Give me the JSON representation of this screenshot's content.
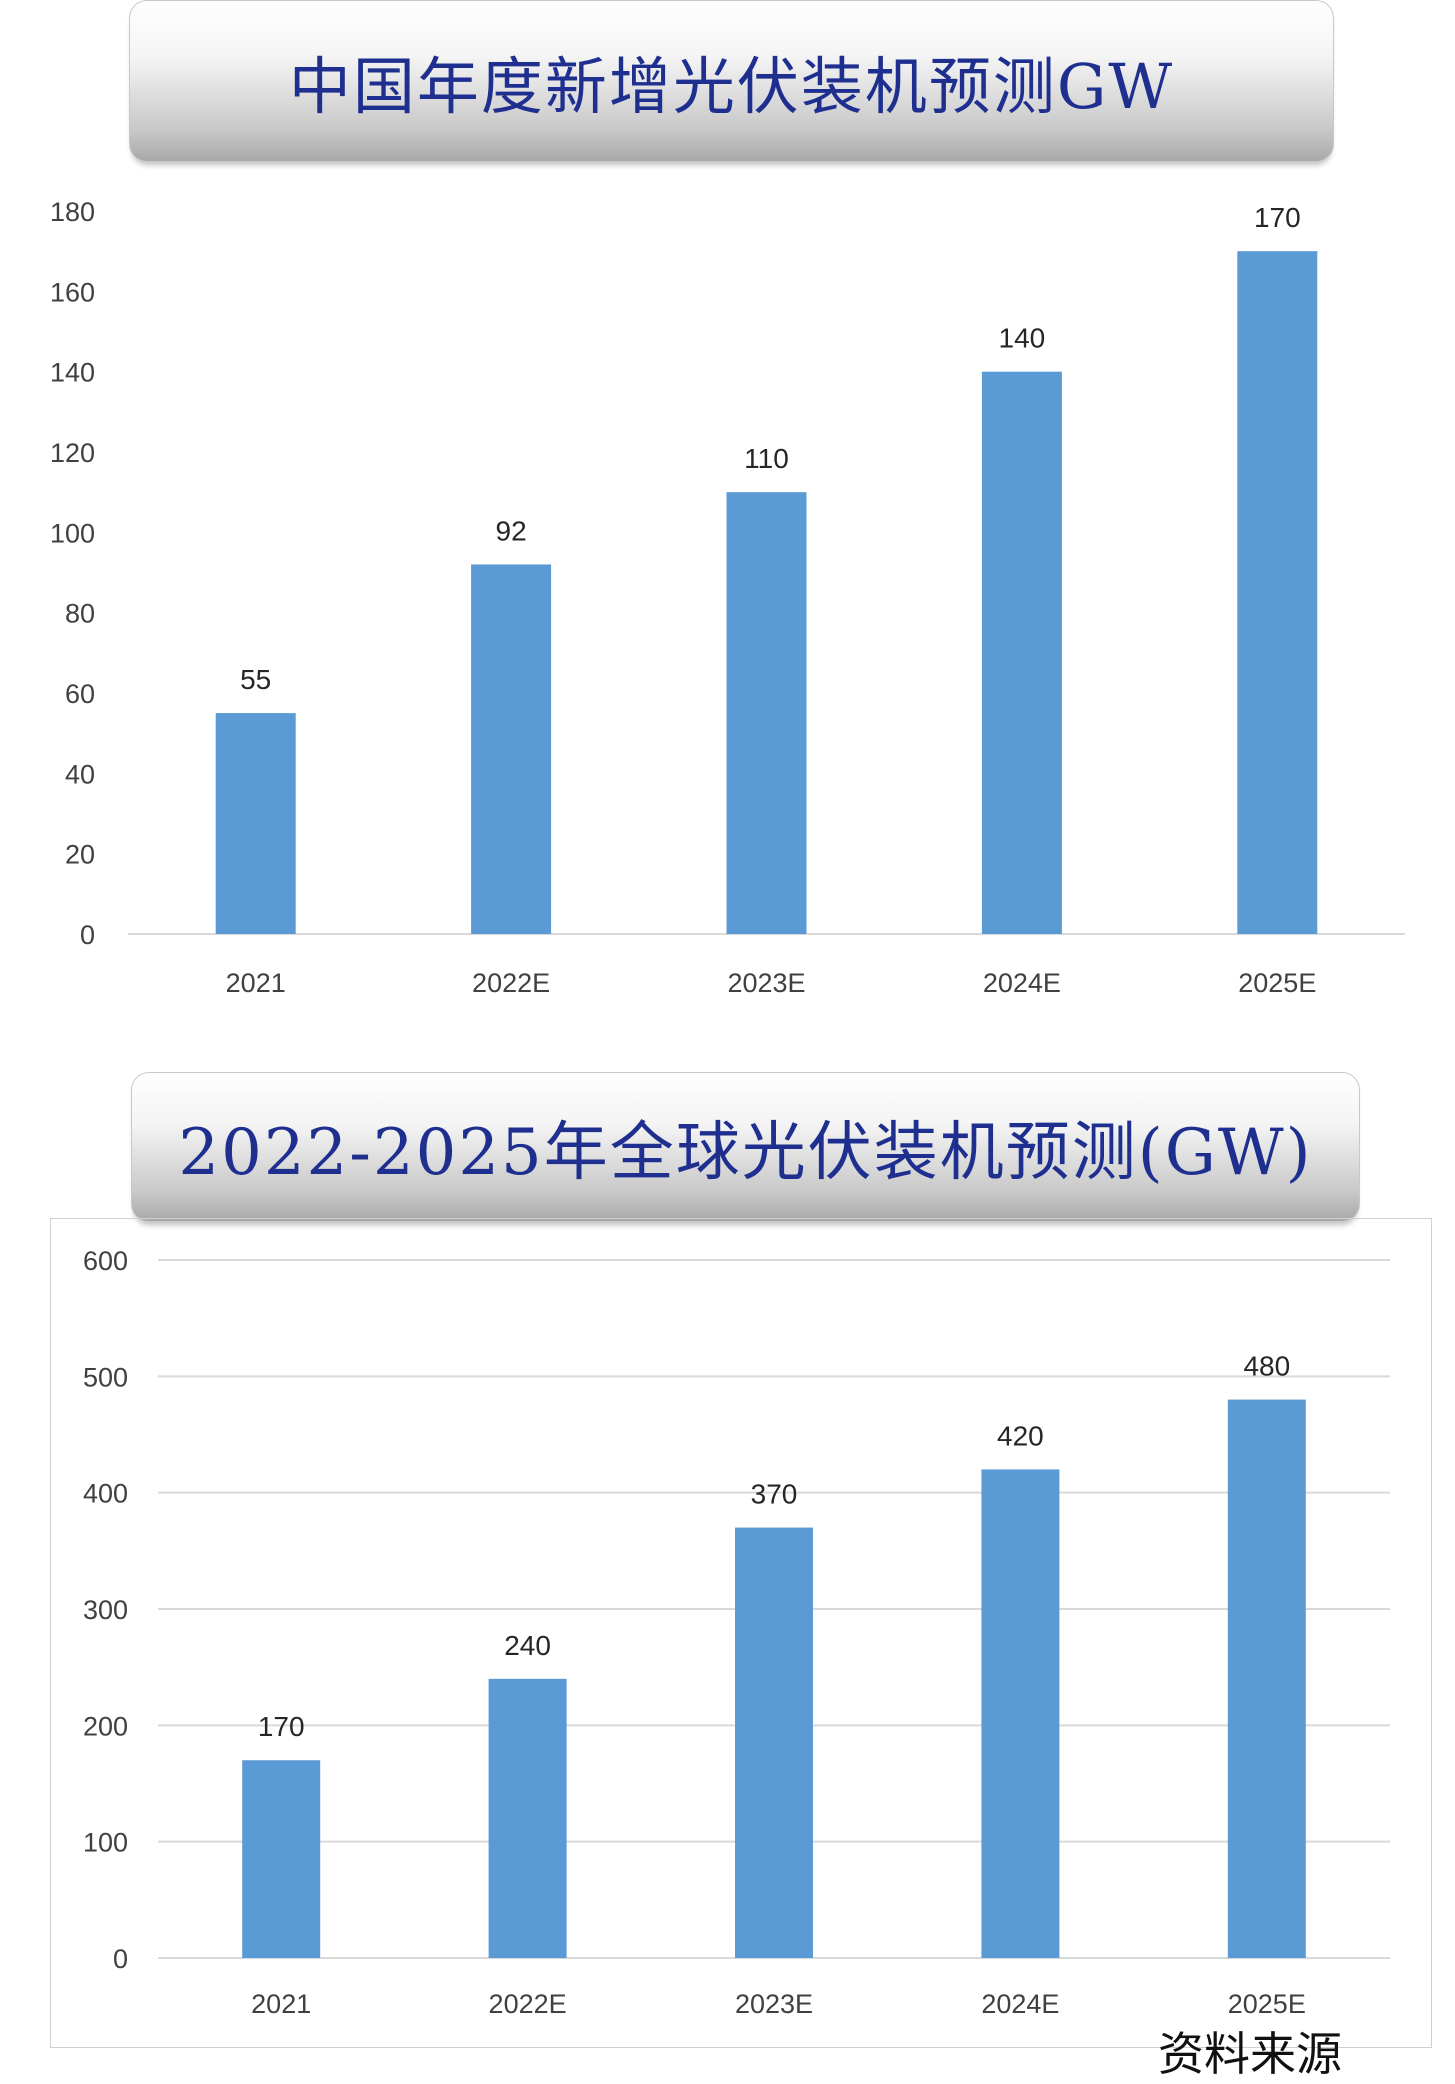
{
  "chart_data": [
    {
      "type": "bar",
      "title": "中国年度新增光伏装机预测GW",
      "categories": [
        "2021",
        "2022E",
        "2023E",
        "2024E",
        "2025E"
      ],
      "values": [
        55,
        92,
        110,
        140,
        170
      ],
      "ylim": [
        0,
        180
      ],
      "yticks": [
        "0",
        "20",
        "40",
        "60",
        "80",
        "100",
        "120",
        "140",
        "160",
        "180"
      ],
      "grid": false,
      "color": "#5b9bd5"
    },
    {
      "type": "bar",
      "title": "2022-2025年全球光伏装机预测(GW)",
      "categories": [
        "2021",
        "2022E",
        "2023E",
        "2024E",
        "2025E"
      ],
      "values": [
        170,
        240,
        370,
        420,
        480
      ],
      "ylim": [
        0,
        600
      ],
      "yticks": [
        "0",
        "100",
        "200",
        "300",
        "400",
        "500",
        "600"
      ],
      "grid": true,
      "color": "#5b9bd5"
    }
  ],
  "footnote": "资料来源"
}
